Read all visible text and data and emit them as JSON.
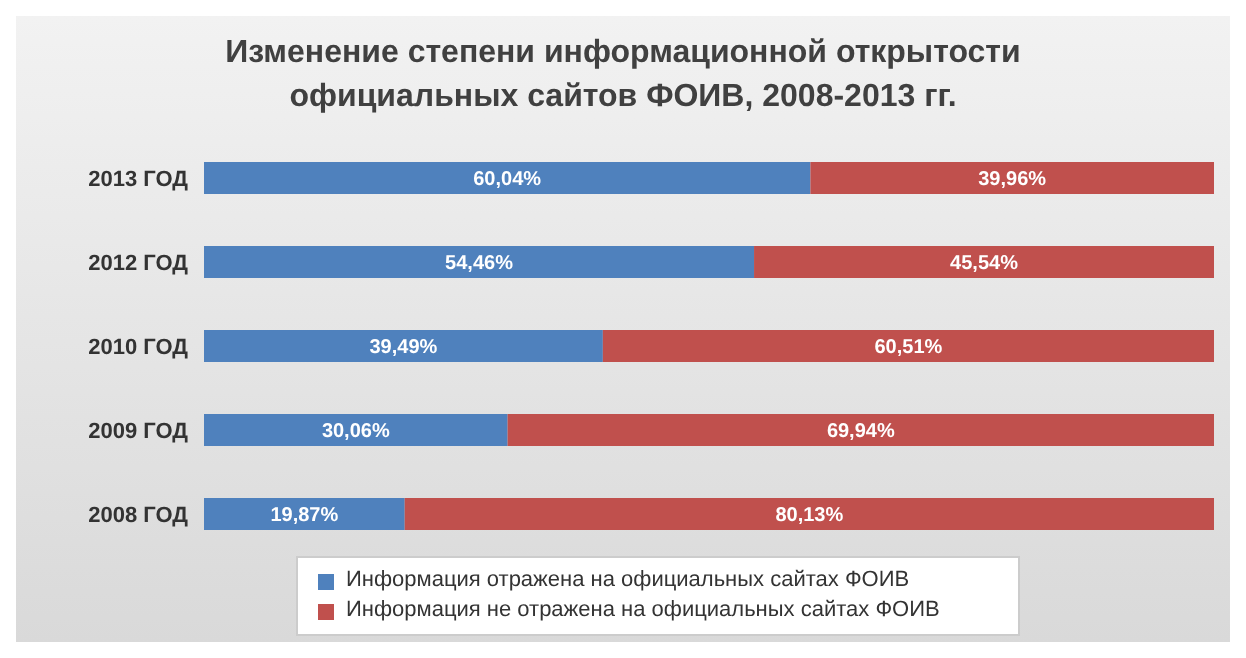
{
  "chart_data": {
    "type": "bar",
    "orientation": "horizontal",
    "stacked": true,
    "title": "Изменение степени информационной открытости официальных сайтов ФОИВ, 2008-2013 гг.",
    "categories": [
      "2013 ГОД",
      "2012 ГОД",
      "2010 ГОД",
      "2009 ГОД",
      "2008 ГОД"
    ],
    "series": [
      {
        "name": "Информация отражена на официальных сайтах ФОИВ",
        "color": "#4f81bd",
        "values": [
          60.04,
          54.46,
          39.49,
          30.06,
          19.87
        ],
        "value_labels": [
          "60,04%",
          "54,46%",
          "39,49%",
          "30,06%",
          "19,87%"
        ]
      },
      {
        "name": "Информация не отражена на официальных сайтах ФОИВ",
        "color": "#c0504d",
        "values": [
          39.96,
          45.54,
          60.51,
          69.94,
          80.13
        ],
        "value_labels": [
          "39,96%",
          "45,54%",
          "60,51%",
          "69,94%",
          "80,13%"
        ]
      }
    ],
    "legend": "bottom",
    "grid": false
  }
}
